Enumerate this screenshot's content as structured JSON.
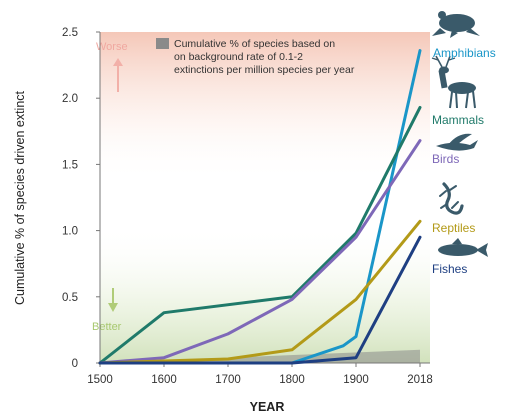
{
  "chart_data": {
    "type": "line",
    "title": "",
    "xlabel": "YEAR",
    "ylabel": "Cumulative % of species driven extinct",
    "x": [
      1500,
      1600,
      1700,
      1800,
      1900,
      2018
    ],
    "x_tick_labels": [
      "1500",
      "1600",
      "1700",
      "1800",
      "1900",
      "2018"
    ],
    "ylim": [
      0,
      2.5
    ],
    "y_ticks": [
      0,
      0.5,
      1.0,
      1.5,
      2.0,
      2.5
    ],
    "y_tick_labels": [
      "0",
      "0.5",
      "1.0",
      "1.5",
      "2.0",
      "2.5"
    ],
    "grid": false,
    "series": [
      {
        "name": "Amphibians",
        "color": "#1a96c8",
        "icon": "frog-icon",
        "points": [
          [
            1500,
            0
          ],
          [
            1800,
            0
          ],
          [
            1880,
            0.13
          ],
          [
            1900,
            0.2
          ],
          [
            2018,
            2.36
          ]
        ]
      },
      {
        "name": "Mammals",
        "color": "#1f7a6a",
        "icon": "deer-icon",
        "points": [
          [
            1500,
            0
          ],
          [
            1600,
            0.38
          ],
          [
            1800,
            0.5
          ],
          [
            1900,
            0.98
          ],
          [
            2018,
            1.93
          ]
        ]
      },
      {
        "name": "Birds",
        "color": "#7e68b8",
        "icon": "bird-icon",
        "points": [
          [
            1500,
            0
          ],
          [
            1600,
            0.04
          ],
          [
            1700,
            0.22
          ],
          [
            1800,
            0.48
          ],
          [
            1900,
            0.95
          ],
          [
            2018,
            1.68
          ]
        ]
      },
      {
        "name": "Reptiles",
        "color": "#b39a18",
        "icon": "lizard-icon",
        "points": [
          [
            1500,
            0
          ],
          [
            1700,
            0.03
          ],
          [
            1800,
            0.1
          ],
          [
            1900,
            0.48
          ],
          [
            2018,
            1.07
          ]
        ]
      },
      {
        "name": "Fishes",
        "color": "#1e3f82",
        "icon": "fish-icon",
        "points": [
          [
            1500,
            0
          ],
          [
            1800,
            0
          ],
          [
            1900,
            0.04
          ],
          [
            2018,
            0.95
          ]
        ]
      }
    ],
    "background_rate": {
      "label": "Cumulative % of species based on on background rate of 0.1-2 extinctions per million species per year",
      "label_lines": [
        "Cumulative % of species based on",
        "on background rate of 0.1-2",
        "extinctions per million species per year"
      ],
      "color": "#8a8a8a",
      "points": [
        [
          1500,
          0
        ],
        [
          2018,
          0.1
        ]
      ]
    },
    "annotations": {
      "worse": "Worse",
      "better": "Better",
      "worse_color": "#f0a8a0",
      "better_color": "#a8c870"
    }
  }
}
